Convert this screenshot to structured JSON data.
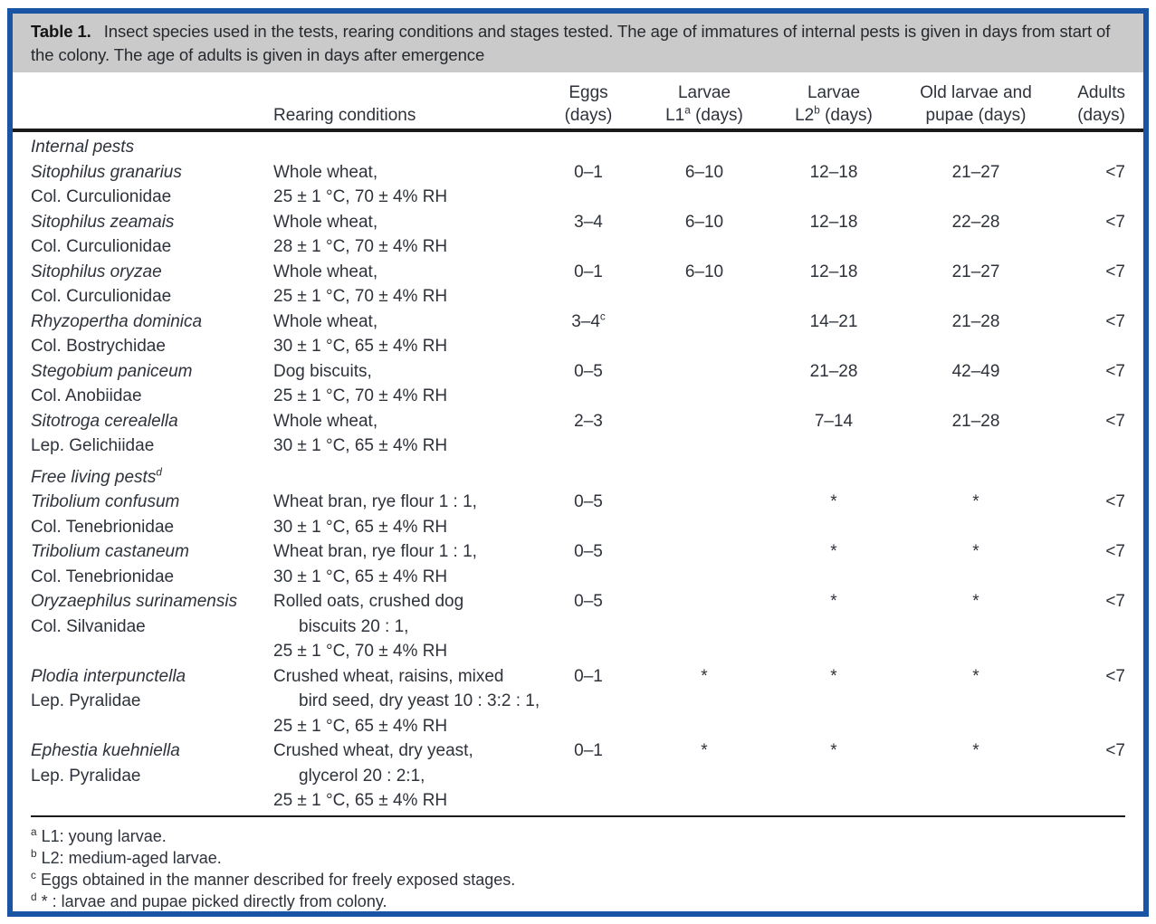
{
  "colors": {
    "frame_blue": "#1a55a5",
    "caption_bg": "#cacaca",
    "rule_black": "#1a1a1a",
    "text": "#2e323a"
  },
  "caption": {
    "label": "Table 1.",
    "text": "Insect species used in the tests, rearing conditions and stages tested. The age of immatures of internal pests is given in days from start of the colony. The age of adults is given in days after emergence"
  },
  "columns": {
    "rearing": "Rearing conditions",
    "eggs_line1": "Eggs",
    "eggs_line2": "(days)",
    "l1_line1": "Larvae",
    "l1_base": "L1",
    "l1_sup": "a",
    "l1_rest": " (days)",
    "l2_line1": "Larvae",
    "l2_base": "L2",
    "l2_sup": "b",
    "l2_rest": " (days)",
    "old_line1": "Old larvae and",
    "old_line2": "pupae (days)",
    "adults_line1": "Adults",
    "adults_line2": "(days)"
  },
  "sections": [
    {
      "heading": "Internal pests",
      "heading_sup": "",
      "rows": [
        {
          "species": "Sitophilus granarius",
          "family": "Col. Curculionidae",
          "rearing1": "Whole wheat,",
          "rearing2": "25 ± 1 °C, 70 ± 4% RH",
          "eggs": "0–1",
          "eggs_sup": "",
          "l1": "6–10",
          "l2": "12–18",
          "old": "21–27",
          "adults": "<7"
        },
        {
          "species": "Sitophilus zeamais",
          "family": "Col. Curculionidae",
          "rearing1": "Whole wheat,",
          "rearing2": "28 ± 1 °C, 70 ± 4% RH",
          "eggs": "3–4",
          "eggs_sup": "",
          "l1": "6–10",
          "l2": "12–18",
          "old": "22–28",
          "adults": "<7"
        },
        {
          "species": "Sitophilus oryzae",
          "family": "Col. Curculionidae",
          "rearing1": "Whole wheat,",
          "rearing2": "25 ± 1 °C, 70 ± 4% RH",
          "eggs": "0–1",
          "eggs_sup": "",
          "l1": "6–10",
          "l2": "12–18",
          "old": "21–27",
          "adults": "<7"
        },
        {
          "species": "Rhyzopertha dominica",
          "family": "Col. Bostrychidae",
          "rearing1": "Whole wheat,",
          "rearing2": "30 ± 1 °C, 65 ± 4% RH",
          "eggs": "3–4",
          "eggs_sup": "c",
          "l1": "",
          "l2": "14–21",
          "old": "21–28",
          "adults": "<7"
        },
        {
          "species": "Stegobium paniceum",
          "family": "Col. Anobiidae",
          "rearing1": "Dog biscuits,",
          "rearing2": "25 ± 1 °C, 70 ± 4% RH",
          "eggs": "0–5",
          "eggs_sup": "",
          "l1": "",
          "l2": "21–28",
          "old": "42–49",
          "adults": "<7"
        },
        {
          "species": "Sitotroga cerealella",
          "family": "Lep. Gelichiidae",
          "rearing1": "Whole wheat,",
          "rearing2": "30 ± 1 °C, 65 ± 4% RH",
          "eggs": "2–3",
          "eggs_sup": "",
          "l1": "",
          "l2": "7–14",
          "old": "21–28",
          "adults": "<7"
        }
      ]
    },
    {
      "heading": "Free living pests",
      "heading_sup": "d",
      "rows": [
        {
          "species": "Tribolium confusum",
          "family": "Col. Tenebrionidae",
          "rearing1": "Wheat bran, rye flour 1 : 1,",
          "rearing2": "30 ± 1 °C, 65 ± 4% RH",
          "eggs": "0–5",
          "eggs_sup": "",
          "l1": "",
          "l2": "*",
          "old": "*",
          "adults": "<7"
        },
        {
          "species": "Tribolium castaneum",
          "family": "Col. Tenebrionidae",
          "rearing1": "Wheat bran, rye flour 1 : 1,",
          "rearing2": "30 ± 1 °C, 65 ± 4% RH",
          "eggs": "0–5",
          "eggs_sup": "",
          "l1": "",
          "l2": "*",
          "old": "*",
          "adults": "<7"
        },
        {
          "species": "Oryzaephilus surinamensis",
          "family": "Col. Silvanidae",
          "rearing1": "Rolled oats, crushed dog",
          "rearing2": "biscuits 20 : 1,",
          "rearing3": "25 ± 1 °C, 70 ± 4% RH",
          "eggs": "0–5",
          "eggs_sup": "",
          "l1": "",
          "l2": "*",
          "old": "*",
          "adults": "<7"
        },
        {
          "species": "Plodia interpunctella",
          "family": "Lep. Pyralidae",
          "rearing1": "Crushed wheat, raisins, mixed",
          "rearing2": "bird seed, dry yeast 10 : 3:2 : 1,",
          "rearing3": "25 ± 1 °C, 65 ± 4% RH",
          "eggs": "0–1",
          "eggs_sup": "",
          "l1": "*",
          "l2": "*",
          "old": "*",
          "adults": "<7"
        },
        {
          "species": "Ephestia kuehniella",
          "family": "Lep. Pyralidae",
          "rearing1": "Crushed wheat, dry yeast,",
          "rearing2": "glycerol 20 : 2:1,",
          "rearing3": "25 ± 1 °C, 65 ± 4% RH",
          "eggs": "0–1",
          "eggs_sup": "",
          "l1": "*",
          "l2": "*",
          "old": "*",
          "adults": "<7"
        }
      ]
    }
  ],
  "footnotes": [
    {
      "marker": "a",
      "text": "L1: young larvae."
    },
    {
      "marker": "b",
      "text": "L2: medium-aged larvae."
    },
    {
      "marker": "c",
      "text": "Eggs obtained in the manner described for freely exposed stages."
    },
    {
      "marker": "d",
      "text": "* : larvae and pupae picked directly from colony."
    }
  ]
}
